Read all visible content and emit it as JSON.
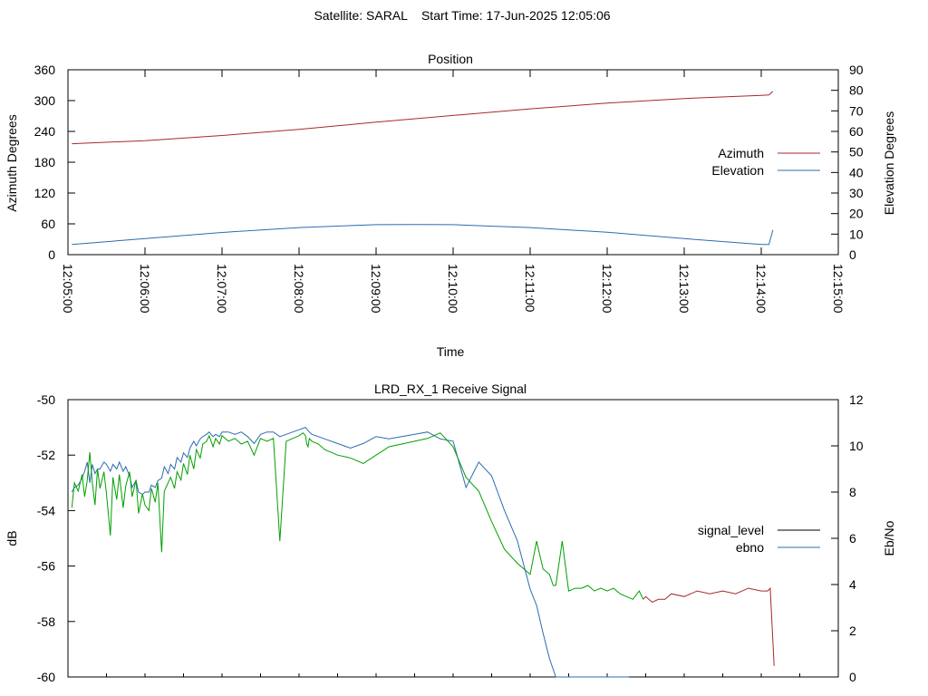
{
  "main_title": "Satellite: SARAL    Start Time: 17-Jun-2025 12:05:06",
  "colors": {
    "azimuth": "#a52a2a",
    "elevation": "#2b6cb0",
    "signal_level": "#000000",
    "signal_green": "#00a000",
    "signal_red": "#a52a2a",
    "ebno": "#2b6cb0"
  },
  "chart_data": [
    {
      "type": "line",
      "title": "Position",
      "xlabel": "Time",
      "ylabel": "Azimuth Degrees",
      "y2label": "Elevation Degrees",
      "xlim": [
        0,
        600
      ],
      "ylim": [
        0,
        360
      ],
      "y2lim": [
        0,
        90
      ],
      "x_ticks": [
        0,
        60,
        120,
        180,
        240,
        300,
        360,
        420,
        480,
        540,
        600
      ],
      "x_tick_labels": [
        "12:05:00",
        "12:06:00",
        "12:07:00",
        "12:08:00",
        "12:09:00",
        "12:10:00",
        "12:11:00",
        "12:12:00",
        "12:13:00",
        "12:14:00",
        "12:15:00"
      ],
      "y_ticks": [
        0,
        60,
        120,
        180,
        240,
        300,
        360
      ],
      "y_tick_labels": [
        "0",
        "60",
        "120",
        "180",
        "240",
        "300",
        "360"
      ],
      "y2_ticks": [
        0,
        10,
        20,
        30,
        40,
        50,
        60,
        70,
        80,
        90
      ],
      "y2_tick_labels": [
        "0",
        "10",
        "20",
        "30",
        "40",
        "50",
        "60",
        "70",
        "80",
        "90"
      ],
      "grid": false,
      "legend_position": "right",
      "series": [
        {
          "name": "Azimuth",
          "axis": "y",
          "x": [
            3,
            60,
            120,
            180,
            240,
            300,
            360,
            420,
            480,
            540,
            546,
            549
          ],
          "y": [
            216,
            222,
            232,
            244,
            258,
            271,
            284,
            295,
            304,
            310,
            311,
            318
          ]
        },
        {
          "name": "Elevation",
          "axis": "y2",
          "x": [
            3,
            60,
            120,
            180,
            240,
            270,
            300,
            360,
            420,
            480,
            540,
            546,
            549
          ],
          "y": [
            5,
            7.8,
            10.8,
            13.2,
            14.6,
            14.7,
            14.6,
            13.2,
            10.9,
            7.8,
            5,
            5,
            12
          ]
        }
      ]
    },
    {
      "type": "line",
      "title": "LRD_RX_1 Receive Signal",
      "ylabel": "dB",
      "y2label": "Eb/No",
      "xlim": [
        0,
        600
      ],
      "ylim": [
        -60,
        -50
      ],
      "y2lim": [
        0,
        12
      ],
      "y_ticks": [
        -60,
        -58,
        -56,
        -54,
        -52,
        -50
      ],
      "y_tick_labels": [
        "-60",
        "-58",
        "-56",
        "-54",
        "-52",
        "-50"
      ],
      "y2_ticks": [
        0,
        2,
        4,
        6,
        8,
        10,
        12
      ],
      "y2_tick_labels": [
        "0",
        "2",
        "4",
        "6",
        "8",
        "10",
        "12"
      ],
      "grid": false,
      "legend_position": "right",
      "series": [
        {
          "name": "signal_level",
          "axis": "y",
          "x": [
            3,
            5,
            8,
            11,
            13,
            15,
            17,
            19,
            21,
            23,
            25,
            28,
            30,
            33,
            35,
            38,
            40,
            43,
            45,
            48,
            50,
            53,
            55,
            58,
            60,
            63,
            65,
            68,
            70,
            73,
            75,
            78,
            80,
            83,
            85,
            88,
            90,
            93,
            95,
            98,
            100,
            103,
            105,
            108,
            110,
            113,
            115,
            118,
            120,
            125,
            130,
            135,
            140,
            145,
            150,
            155,
            160,
            165,
            170,
            175,
            180,
            183,
            185,
            186,
            187,
            188,
            190,
            195,
            200,
            210,
            220,
            230,
            240,
            250,
            260,
            270,
            280,
            290,
            300,
            310,
            320,
            330,
            340,
            350,
            360,
            365,
            370,
            375,
            378,
            380,
            385,
            390,
            395,
            400,
            405,
            410,
            415,
            420,
            425,
            430,
            435,
            440,
            445,
            448,
            450,
            455,
            460,
            465,
            470,
            480,
            490,
            500,
            510,
            520,
            530,
            540,
            545,
            547,
            550
          ],
          "y": [
            -53.9,
            -53.0,
            -53.3,
            -52.7,
            -53.5,
            -52.9,
            -51.9,
            -53.0,
            -53.8,
            -52.5,
            -53.2,
            -52.6,
            -53.4,
            -54.9,
            -52.8,
            -53.6,
            -52.7,
            -53.9,
            -53.1,
            -52.6,
            -53.5,
            -52.9,
            -54.1,
            -53.4,
            -53.8,
            -54.0,
            -53.2,
            -53.7,
            -53.0,
            -55.5,
            -53.3,
            -53.0,
            -52.8,
            -53.2,
            -52.6,
            -52.9,
            -52.3,
            -52.7,
            -52.0,
            -52.5,
            -51.8,
            -52.1,
            -51.6,
            -51.5,
            -51.3,
            -51.7,
            -51.4,
            -51.6,
            -51.3,
            -51.5,
            -51.4,
            -51.6,
            -51.5,
            -52.0,
            -51.4,
            -51.5,
            -51.4,
            -55.1,
            -51.5,
            -51.4,
            -51.3,
            -51.2,
            -51.3,
            -51.6,
            -51.7,
            -51.4,
            -51.5,
            -51.6,
            -51.8,
            -52.0,
            -52.1,
            -52.3,
            -52.0,
            -51.7,
            -51.6,
            -51.5,
            -51.4,
            -51.2,
            -51.7,
            -52.8,
            -53.3,
            -54.4,
            -55.4,
            -55.9,
            -56.3,
            -55.1,
            -56.1,
            -56.3,
            -56.7,
            -56.7,
            -55.1,
            -56.9,
            -56.8,
            -56.8,
            -56.7,
            -56.9,
            -56.8,
            -56.9,
            -56.8,
            -57.0,
            -57.1,
            -57.2,
            -56.9,
            -57.2,
            -57.1,
            -57.3,
            -57.2,
            -57.2,
            -57.0,
            -57.1,
            -56.9,
            -57.0,
            -56.9,
            -57.0,
            -56.8,
            -56.9,
            -56.9,
            -56.8,
            -59.6
          ]
        },
        {
          "name": "ebno",
          "axis": "y2",
          "x": [
            3,
            5,
            8,
            11,
            13,
            15,
            17,
            19,
            21,
            23,
            25,
            28,
            30,
            33,
            35,
            38,
            40,
            43,
            45,
            48,
            50,
            53,
            55,
            58,
            60,
            63,
            65,
            68,
            70,
            73,
            75,
            78,
            80,
            83,
            85,
            88,
            90,
            93,
            95,
            98,
            100,
            103,
            105,
            108,
            110,
            113,
            115,
            118,
            120,
            125,
            130,
            135,
            140,
            145,
            150,
            155,
            160,
            165,
            170,
            175,
            180,
            185,
            188,
            190,
            195,
            200,
            210,
            220,
            230,
            240,
            250,
            260,
            270,
            280,
            290,
            300,
            310,
            320,
            330,
            340,
            350,
            360,
            365,
            370,
            375,
            380,
            385,
            390,
            395,
            400,
            405,
            410,
            415,
            420,
            425,
            430,
            435,
            437
          ],
          "y": [
            8.0,
            8.2,
            8.3,
            8.6,
            8.9,
            9.3,
            8.4,
            9.2,
            8.8,
            9.0,
            9.0,
            9.3,
            9.2,
            8.9,
            9.2,
            9.0,
            9.3,
            8.9,
            9.1,
            8.7,
            8.2,
            8.5,
            8.0,
            7.9,
            8.0,
            8.0,
            8.3,
            8.2,
            8.5,
            8.6,
            9.1,
            8.8,
            9.2,
            9.0,
            9.5,
            9.3,
            9.7,
            9.5,
            9.9,
            10.2,
            10.0,
            10.3,
            10.4,
            10.5,
            10.6,
            10.4,
            10.5,
            10.4,
            10.6,
            10.6,
            10.5,
            10.6,
            10.4,
            10.1,
            10.5,
            10.6,
            10.6,
            10.4,
            10.5,
            10.6,
            10.7,
            10.8,
            10.6,
            10.5,
            10.4,
            10.3,
            10.1,
            9.9,
            10.1,
            10.4,
            10.3,
            10.4,
            10.5,
            10.6,
            10.3,
            10.2,
            8.2,
            9.3,
            8.7,
            7.2,
            5.9,
            3.8,
            3.1,
            1.9,
            0.8,
            0.0,
            0.0,
            0.0,
            0.0,
            0.0,
            0.0,
            0.0,
            0.0,
            0.0,
            0.0,
            0.0,
            0.0,
            0.0
          ]
        }
      ]
    }
  ]
}
